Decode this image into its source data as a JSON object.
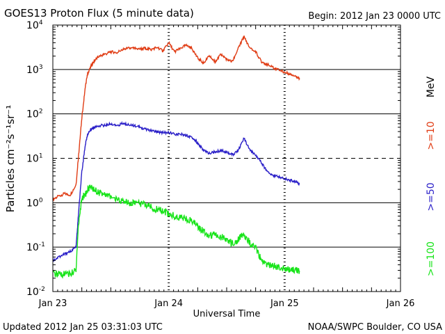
{
  "chart_data": {
    "type": "line",
    "title": "GOES13 Proton Flux (5 minute data)",
    "begin_label": "Begin: 2012 Jan 23 0000 UTC",
    "xlabel": "Universal Time",
    "ylabel": "Particles cm⁻²s⁻¹sr⁻¹",
    "xlim": [
      0,
      3
    ],
    "ylim": [
      0.01,
      10000
    ],
    "yscale": "log",
    "x_ticks": [
      {
        "v": 0,
        "label": "Jan 23"
      },
      {
        "v": 1,
        "label": "Jan 24"
      },
      {
        "v": 2,
        "label": "Jan 25"
      },
      {
        "v": 3,
        "label": "Jan 26"
      }
    ],
    "y_ticks": [
      {
        "v": 0.01,
        "base": "10",
        "exp": "-2"
      },
      {
        "v": 0.1,
        "base": "10",
        "exp": "-1"
      },
      {
        "v": 1,
        "base": "10",
        "exp": "0"
      },
      {
        "v": 10,
        "base": "10",
        "exp": "1"
      },
      {
        "v": 100,
        "base": "10",
        "exp": "2"
      },
      {
        "v": 1000,
        "base": "10",
        "exp": "3"
      },
      {
        "v": 10000,
        "base": "10",
        "exp": "4"
      }
    ],
    "threshold_line": {
      "value": 10,
      "style": "dashed"
    },
    "series": [
      {
        "name": ">=10 MeV",
        "color": "#e03c14",
        "x": [
          0,
          0.05,
          0.1,
          0.15,
          0.2,
          0.22,
          0.25,
          0.28,
          0.3,
          0.33,
          0.36,
          0.4,
          0.45,
          0.5,
          0.55,
          0.6,
          0.65,
          0.7,
          0.75,
          0.8,
          0.85,
          0.9,
          0.95,
          1.0,
          1.05,
          1.1,
          1.15,
          1.2,
          1.25,
          1.3,
          1.35,
          1.4,
          1.45,
          1.5,
          1.55,
          1.6,
          1.65,
          1.7,
          1.75,
          1.8,
          1.85,
          1.9,
          1.95,
          2.0,
          2.05,
          2.1,
          2.13
        ],
        "values": [
          1.2,
          1.4,
          1.6,
          1.5,
          2.5,
          10,
          80,
          400,
          800,
          1200,
          1600,
          2000,
          2200,
          2500,
          2400,
          2800,
          3000,
          3000,
          2900,
          3000,
          2800,
          3200,
          2600,
          4000,
          2500,
          3000,
          3500,
          3000,
          1800,
          1400,
          2000,
          1500,
          2200,
          1700,
          1500,
          3000,
          5500,
          3000,
          2500,
          1500,
          1300,
          1100,
          1000,
          850,
          800,
          700,
          600
        ]
      },
      {
        "name": ">=50 MeV",
        "color": "#2a1fc8",
        "x": [
          0,
          0.05,
          0.1,
          0.15,
          0.2,
          0.22,
          0.25,
          0.28,
          0.3,
          0.33,
          0.36,
          0.4,
          0.45,
          0.5,
          0.55,
          0.6,
          0.65,
          0.7,
          0.75,
          0.8,
          0.85,
          0.9,
          0.95,
          1.0,
          1.05,
          1.1,
          1.15,
          1.2,
          1.25,
          1.3,
          1.35,
          1.4,
          1.45,
          1.5,
          1.55,
          1.6,
          1.65,
          1.7,
          1.75,
          1.8,
          1.85,
          1.9,
          1.95,
          2.0,
          2.05,
          2.1,
          2.13
        ],
        "values": [
          0.05,
          0.06,
          0.07,
          0.08,
          0.1,
          0.5,
          5,
          20,
          35,
          45,
          50,
          55,
          55,
          60,
          55,
          60,
          58,
          55,
          50,
          45,
          42,
          40,
          38,
          38,
          35,
          35,
          33,
          30,
          22,
          15,
          13,
          14,
          15,
          14,
          12,
          15,
          28,
          15,
          12,
          8,
          5,
          4.2,
          3.8,
          3.5,
          3.2,
          3.0,
          2.6
        ]
      },
      {
        "name": ">=100 MeV",
        "color": "#18e41a",
        "x": [
          0,
          0.05,
          0.1,
          0.15,
          0.2,
          0.22,
          0.25,
          0.28,
          0.3,
          0.33,
          0.36,
          0.4,
          0.45,
          0.5,
          0.55,
          0.6,
          0.65,
          0.7,
          0.75,
          0.8,
          0.85,
          0.9,
          0.95,
          1.0,
          1.05,
          1.1,
          1.15,
          1.2,
          1.25,
          1.3,
          1.35,
          1.4,
          1.45,
          1.5,
          1.55,
          1.6,
          1.65,
          1.7,
          1.75,
          1.8,
          1.85,
          1.9,
          1.95,
          2.0,
          2.05,
          2.1,
          2.13
        ],
        "values": [
          0.025,
          0.025,
          0.025,
          0.025,
          0.03,
          0.3,
          1.3,
          1.5,
          2.0,
          2.2,
          1.9,
          1.7,
          1.5,
          1.4,
          1.2,
          1.1,
          1.0,
          1.0,
          0.95,
          0.9,
          0.8,
          0.7,
          0.65,
          0.55,
          0.5,
          0.45,
          0.42,
          0.4,
          0.3,
          0.22,
          0.18,
          0.2,
          0.17,
          0.15,
          0.12,
          0.15,
          0.2,
          0.12,
          0.1,
          0.05,
          0.04,
          0.038,
          0.035,
          0.033,
          0.031,
          0.03,
          0.028
        ]
      }
    ],
    "right_labels": {
      "mev": "MeV",
      "ge10": ">=10",
      "ge50": ">=50",
      "ge100": ">=100"
    },
    "footer_left": "Updated 2012 Jan 25 03:31:03 UTC",
    "footer_right": "NOAA/SWPC Boulder, CO USA"
  }
}
